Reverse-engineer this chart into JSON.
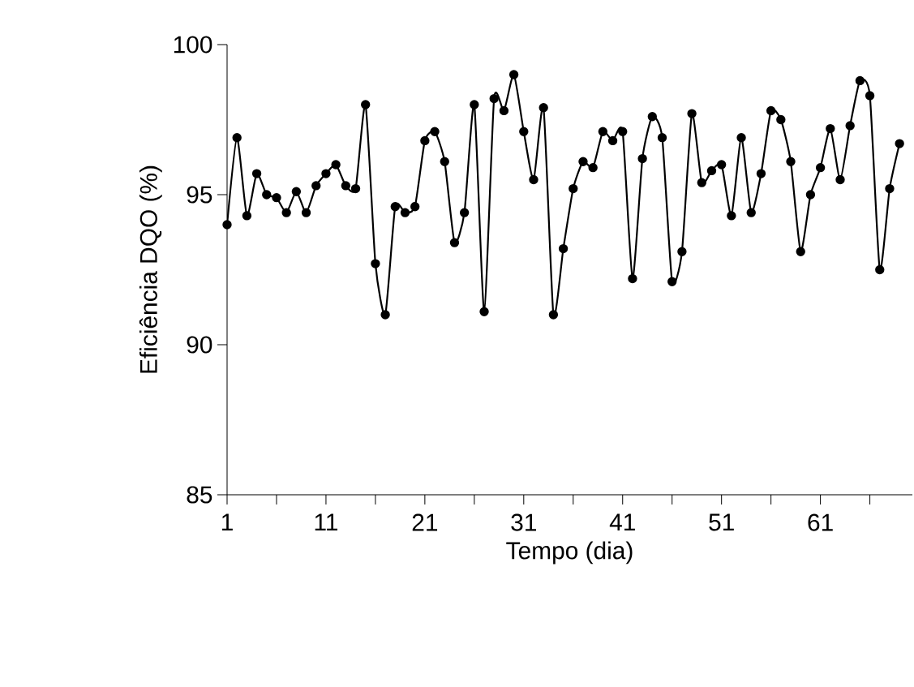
{
  "chart_data": {
    "type": "line",
    "xlabel": "Tempo (dia)",
    "ylabel": "Eficiência DQO (%)",
    "x": [
      1,
      2,
      3,
      4,
      5,
      6,
      7,
      8,
      9,
      10,
      11,
      12,
      13,
      14,
      15,
      16,
      17,
      18,
      19,
      20,
      21,
      22,
      23,
      24,
      25,
      26,
      27,
      28,
      29,
      30,
      31,
      32,
      33,
      34,
      35,
      36,
      37,
      38,
      39,
      40,
      41,
      42,
      43,
      44,
      45,
      46,
      47,
      48,
      49,
      50,
      51,
      52,
      53,
      54,
      55,
      56,
      57,
      58,
      59,
      60,
      61,
      62,
      63,
      64,
      65,
      66,
      67,
      68,
      69
    ],
    "series": [
      {
        "color": "#000000",
        "values": [
          94.0,
          96.9,
          94.3,
          95.7,
          95.0,
          94.9,
          94.4,
          95.1,
          94.4,
          95.3,
          95.7,
          96.0,
          95.3,
          95.2,
          98.0,
          92.7,
          91.0,
          94.6,
          94.4,
          94.6,
          96.8,
          97.1,
          96.1,
          93.4,
          94.4,
          98.0,
          91.1,
          98.2,
          97.8,
          99.0,
          97.1,
          95.5,
          97.9,
          91.0,
          93.2,
          95.2,
          96.1,
          95.9,
          97.1,
          96.8,
          97.1,
          92.2,
          96.2,
          97.6,
          96.9,
          92.1,
          93.1,
          97.7,
          95.4,
          95.8,
          96.0,
          94.3,
          96.9,
          94.4,
          95.7,
          97.8,
          97.5,
          96.1,
          93.1,
          95.0,
          95.9,
          97.2,
          95.5,
          97.3,
          98.8,
          98.3,
          92.5,
          95.2,
          96.7
        ]
      }
    ],
    "xlim": [
      1,
      70.3
    ],
    "ylim": [
      85,
      100
    ],
    "xticks": [
      1,
      {
        "value": 6,
        "label": null
      },
      11,
      {
        "value": 16,
        "label": null
      },
      21,
      {
        "value": 26,
        "label": null
      },
      31,
      {
        "value": 36,
        "label": null
      },
      41,
      {
        "value": 46,
        "label": null
      },
      51,
      {
        "value": 56,
        "label": null
      },
      61,
      {
        "value": 66,
        "label": null
      }
    ],
    "yticks": [
      85,
      90,
      95,
      100
    ],
    "marker": "circle",
    "line_style": "solid",
    "grid": false
  }
}
